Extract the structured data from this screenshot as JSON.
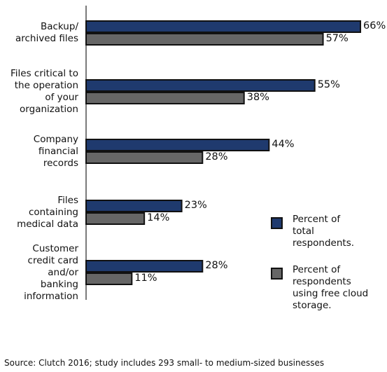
{
  "chart_data": {
    "type": "grouped-hbar",
    "categories": [
      "Backup/\narchived files",
      "Files critical to\nthe operation\nof your\norganization",
      "Company\nfinancial\nrecords",
      "Files\ncontaining\nmedical data",
      "Customer\ncredit card\nand/or\nbanking\ninformation"
    ],
    "series": [
      {
        "name": "Percent of\ntotal\nrespondents.",
        "color": "#1f3a6e",
        "values": [
          66,
          55,
          44,
          23,
          28
        ],
        "value_labels": [
          "66%",
          "55%",
          "44%",
          "23%",
          "28%"
        ]
      },
      {
        "name": "Percent of\nrespondents\nusing free cloud\nstorage.",
        "color": "#666666",
        "values": [
          57,
          38,
          28,
          14,
          11
        ],
        "value_labels": [
          "57%",
          "38%",
          "28%",
          "14%",
          "11%"
        ]
      }
    ],
    "source": "Source: Clutch 2016; study includes 293 small- to medium-sized businesses"
  }
}
